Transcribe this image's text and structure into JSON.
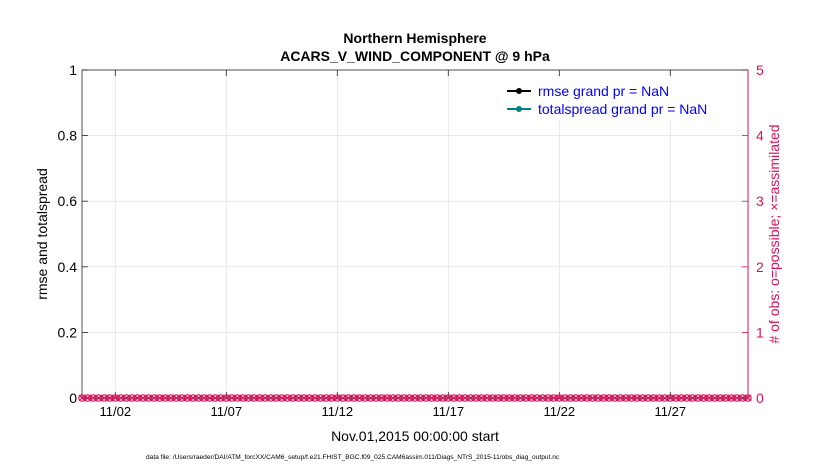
{
  "chart_data": {
    "type": "line",
    "title": "Northern Hemisphere",
    "subtitle": "ACARS_V_WIND_COMPONENT @ 9 hPa",
    "xlabel": "Nov.01,2015 00:00:00 start",
    "ylabel": "rmse and totalspread",
    "y2label": "# of obs: o=possible; ×=assimilated",
    "xlim": [
      0.5,
      30.5
    ],
    "ylim": [
      0,
      1
    ],
    "y2lim": [
      0,
      5
    ],
    "xticks": [
      {
        "x": 2,
        "label": "11/02"
      },
      {
        "x": 7,
        "label": "11/07"
      },
      {
        "x": 12,
        "label": "11/12"
      },
      {
        "x": 17,
        "label": "11/17"
      },
      {
        "x": 22,
        "label": "11/22"
      },
      {
        "x": 27,
        "label": "11/27"
      }
    ],
    "yticks": [
      {
        "v": 0,
        "label": "0"
      },
      {
        "v": 0.2,
        "label": "0.2"
      },
      {
        "v": 0.4,
        "label": "0.4"
      },
      {
        "v": 0.6,
        "label": "0.6"
      },
      {
        "v": 0.8,
        "label": "0.8"
      },
      {
        "v": 1,
        "label": "1"
      }
    ],
    "y2ticks": [
      {
        "v": 0,
        "label": "0"
      },
      {
        "v": 1,
        "label": "1"
      },
      {
        "v": 2,
        "label": "2"
      },
      {
        "v": 3,
        "label": "3"
      },
      {
        "v": 4,
        "label": "4"
      },
      {
        "v": 5,
        "label": "5"
      }
    ],
    "grid": true,
    "legend_position": "top-right",
    "series": [
      {
        "name": "rmse grand pr = NaN",
        "color": "#000000",
        "marker": "circle",
        "values": []
      },
      {
        "name": "totalspread grand pr = NaN",
        "color": "#008080",
        "marker": "circle",
        "values": []
      }
    ],
    "obs_counts": {
      "color": "#d8115a",
      "x_start": 0.5,
      "x_end": 30.5,
      "step": 0.25,
      "possible": 0,
      "assimilated": 0
    }
  },
  "footnote": "data file: /Users/raeder/DAI/ATM_forcXX/CAM6_setup/f.e21.FHIST_BGC.f09_025.CAM6assim.011/Diags_NTrS_2015-11/obs_diag_output.nc"
}
